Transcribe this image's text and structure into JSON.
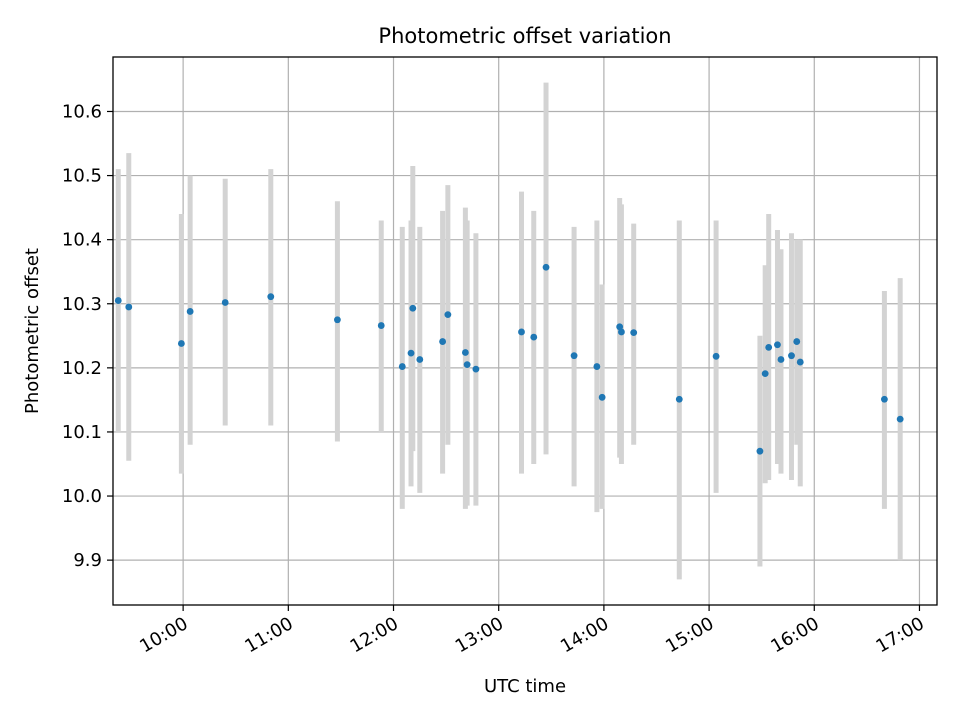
{
  "chart_data": {
    "type": "scatter",
    "title": "Photometric offset variation",
    "xlabel": "UTC time",
    "ylabel": "Photometric offset",
    "xlim": [
      "09:20",
      "17:10"
    ],
    "ylim": [
      9.83,
      10.685
    ],
    "x_ticks": [
      "10:00",
      "11:00",
      "12:00",
      "13:00",
      "14:00",
      "15:00",
      "16:00",
      "17:00"
    ],
    "y_ticks": [
      "9.9",
      "10.0",
      "10.1",
      "10.2",
      "10.3",
      "10.4",
      "10.5",
      "10.6"
    ],
    "grid": true,
    "marker_color": "#1f77b4",
    "errorbar_color": "#d3d3d3",
    "points": [
      {
        "time": "09:23",
        "y": 10.305,
        "low": 10.1,
        "high": 10.51
      },
      {
        "time": "09:29",
        "y": 10.295,
        "low": 10.055,
        "high": 10.535
      },
      {
        "time": "09:59",
        "y": 10.238,
        "low": 10.035,
        "high": 10.44
      },
      {
        "time": "10:04",
        "y": 10.288,
        "low": 10.08,
        "high": 10.5
      },
      {
        "time": "10:24",
        "y": 10.302,
        "low": 10.11,
        "high": 10.495
      },
      {
        "time": "10:50",
        "y": 10.311,
        "low": 10.11,
        "high": 10.51
      },
      {
        "time": "11:28",
        "y": 10.275,
        "low": 10.085,
        "high": 10.46
      },
      {
        "time": "11:53",
        "y": 10.266,
        "low": 10.1,
        "high": 10.43
      },
      {
        "time": "12:05",
        "y": 10.202,
        "low": 9.98,
        "high": 10.42
      },
      {
        "time": "12:10",
        "y": 10.223,
        "low": 10.015,
        "high": 10.43
      },
      {
        "time": "12:11",
        "y": 10.293,
        "low": 10.07,
        "high": 10.515
      },
      {
        "time": "12:15",
        "y": 10.213,
        "low": 10.005,
        "high": 10.42
      },
      {
        "time": "12:28",
        "y": 10.241,
        "low": 10.035,
        "high": 10.445
      },
      {
        "time": "12:31",
        "y": 10.283,
        "low": 10.08,
        "high": 10.485
      },
      {
        "time": "12:41",
        "y": 10.224,
        "low": 9.98,
        "high": 10.45
      },
      {
        "time": "12:42",
        "y": 10.205,
        "low": 9.985,
        "high": 10.43
      },
      {
        "time": "12:47",
        "y": 10.198,
        "low": 9.985,
        "high": 10.41
      },
      {
        "time": "13:13",
        "y": 10.256,
        "low": 10.035,
        "high": 10.475
      },
      {
        "time": "13:20",
        "y": 10.248,
        "low": 10.05,
        "high": 10.445
      },
      {
        "time": "13:27",
        "y": 10.357,
        "low": 10.065,
        "high": 10.645
      },
      {
        "time": "13:43",
        "y": 10.219,
        "low": 10.015,
        "high": 10.42
      },
      {
        "time": "13:56",
        "y": 10.202,
        "low": 9.975,
        "high": 10.43
      },
      {
        "time": "13:59",
        "y": 10.154,
        "low": 9.98,
        "high": 10.33
      },
      {
        "time": "14:09",
        "y": 10.264,
        "low": 10.06,
        "high": 10.465
      },
      {
        "time": "14:10",
        "y": 10.256,
        "low": 10.05,
        "high": 10.455
      },
      {
        "time": "14:17",
        "y": 10.255,
        "low": 10.08,
        "high": 10.425
      },
      {
        "time": "14:43",
        "y": 10.151,
        "low": 9.87,
        "high": 10.43
      },
      {
        "time": "15:04",
        "y": 10.218,
        "low": 10.005,
        "high": 10.43
      },
      {
        "time": "15:29",
        "y": 10.07,
        "low": 9.89,
        "high": 10.25
      },
      {
        "time": "15:32",
        "y": 10.191,
        "low": 10.02,
        "high": 10.36
      },
      {
        "time": "15:34",
        "y": 10.232,
        "low": 10.025,
        "high": 10.44
      },
      {
        "time": "15:39",
        "y": 10.236,
        "low": 10.05,
        "high": 10.415
      },
      {
        "time": "15:41",
        "y": 10.213,
        "low": 10.035,
        "high": 10.385
      },
      {
        "time": "15:47",
        "y": 10.219,
        "low": 10.025,
        "high": 10.41
      },
      {
        "time": "15:50",
        "y": 10.241,
        "low": 10.08,
        "high": 10.4
      },
      {
        "time": "15:52",
        "y": 10.209,
        "low": 10.015,
        "high": 10.4
      },
      {
        "time": "16:40",
        "y": 10.151,
        "low": 9.98,
        "high": 10.32
      },
      {
        "time": "16:49",
        "y": 10.12,
        "low": 9.9,
        "high": 10.34
      }
    ]
  }
}
